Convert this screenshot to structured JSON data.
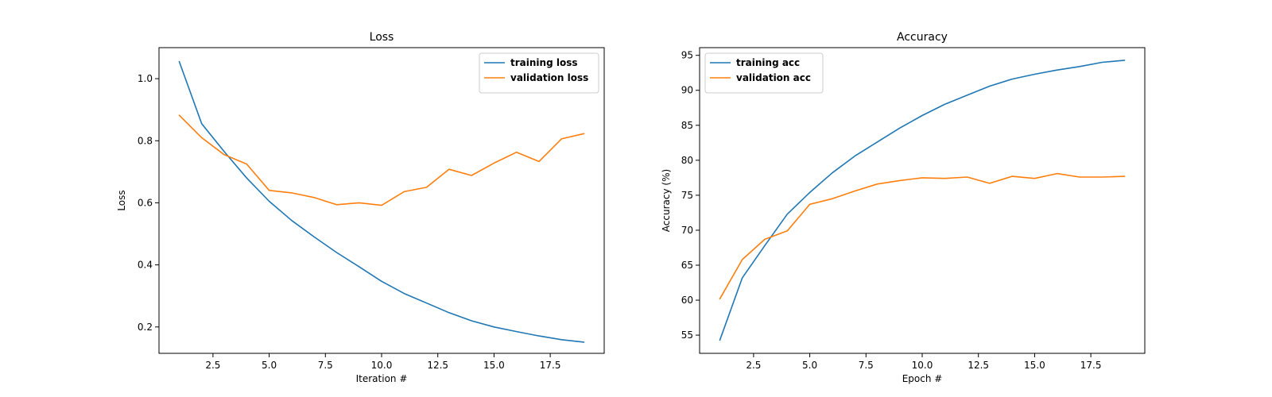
{
  "chart_data": [
    {
      "type": "line",
      "title": "Loss",
      "xlabel": "Iteration #",
      "ylabel": "Loss",
      "xlim": [
        0.1,
        19.9
      ],
      "ylim": [
        0.115,
        1.1
      ],
      "xticks": [
        2.5,
        5.0,
        7.5,
        10.0,
        12.5,
        15.0,
        17.5
      ],
      "xtick_labels": [
        "2.5",
        "5.0",
        "7.5",
        "10.0",
        "12.5",
        "15.0",
        "17.5"
      ],
      "yticks": [
        0.2,
        0.4,
        0.6,
        0.8,
        1.0
      ],
      "ytick_labels": [
        "0.2",
        "0.4",
        "0.6",
        "0.8",
        "1.0"
      ],
      "legend_position": "top-right",
      "grid": false,
      "x": [
        1,
        2,
        3,
        4,
        5,
        6,
        7,
        8,
        9,
        10,
        11,
        12,
        13,
        14,
        15,
        16,
        17,
        18,
        19
      ],
      "series": [
        {
          "name": "training loss",
          "color": "#1f77b4",
          "values": [
            1.055,
            0.855,
            0.765,
            0.68,
            0.605,
            0.543,
            0.49,
            0.44,
            0.394,
            0.347,
            0.308,
            0.277,
            0.246,
            0.22,
            0.2,
            0.185,
            0.171,
            0.159,
            0.151
          ]
        },
        {
          "name": "validation loss",
          "color": "#ff7f0e",
          "values": [
            0.882,
            0.81,
            0.755,
            0.725,
            0.64,
            0.632,
            0.617,
            0.594,
            0.6,
            0.592,
            0.636,
            0.65,
            0.708,
            0.688,
            0.728,
            0.763,
            0.733,
            0.806,
            0.823
          ]
        }
      ]
    },
    {
      "type": "line",
      "title": "Accuracy",
      "xlabel": "Epoch #",
      "ylabel": "Accuracy (%)",
      "xlim": [
        0.1,
        19.9
      ],
      "ylim": [
        52.4,
        96.1
      ],
      "xticks": [
        2.5,
        5.0,
        7.5,
        10.0,
        12.5,
        15.0,
        17.5
      ],
      "xtick_labels": [
        "2.5",
        "5.0",
        "7.5",
        "10.0",
        "12.5",
        "15.0",
        "17.5"
      ],
      "yticks": [
        55,
        60,
        65,
        70,
        75,
        80,
        85,
        90,
        95
      ],
      "ytick_labels": [
        "55",
        "60",
        "65",
        "70",
        "75",
        "80",
        "85",
        "90",
        "95"
      ],
      "legend_position": "top-left",
      "grid": false,
      "x": [
        1,
        2,
        3,
        4,
        5,
        6,
        7,
        8,
        9,
        10,
        11,
        12,
        13,
        14,
        15,
        16,
        17,
        18,
        19
      ],
      "series": [
        {
          "name": "training acc",
          "color": "#1f77b4",
          "values": [
            54.3,
            63.2,
            67.8,
            72.3,
            75.4,
            78.2,
            80.6,
            82.6,
            84.6,
            86.4,
            88.0,
            89.3,
            90.6,
            91.6,
            92.3,
            92.9,
            93.4,
            94.0,
            94.3
          ]
        },
        {
          "name": "validation acc",
          "color": "#ff7f0e",
          "values": [
            60.2,
            65.8,
            68.7,
            69.9,
            73.7,
            74.5,
            75.6,
            76.6,
            77.1,
            77.5,
            77.4,
            77.6,
            76.7,
            77.7,
            77.4,
            78.1,
            77.6,
            77.6,
            77.7
          ]
        }
      ]
    }
  ]
}
